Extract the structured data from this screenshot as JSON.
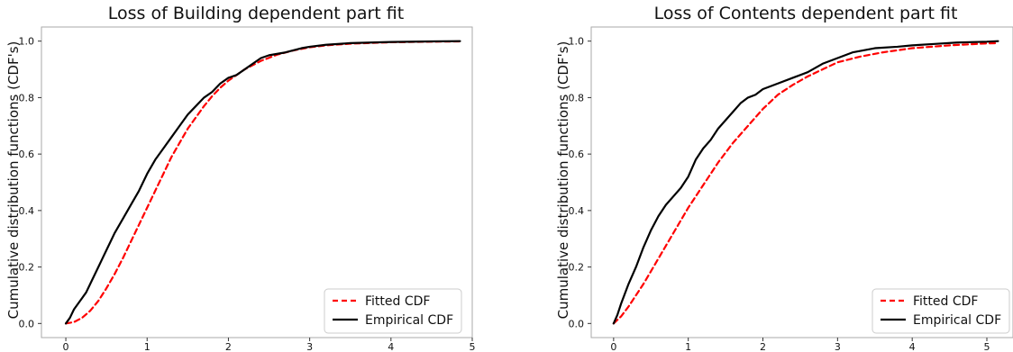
{
  "chart_data": [
    {
      "type": "line",
      "title": "Loss of Building dependent part fit",
      "xlabel": "",
      "ylabel": "Cumulative distribution functions (CDF's)",
      "xlim": [
        -0.3,
        5.0
      ],
      "ylim": [
        -0.05,
        1.05
      ],
      "xticks": [
        0,
        1,
        2,
        3,
        4,
        5
      ],
      "yticks": [
        0.0,
        0.2,
        0.4,
        0.6,
        0.8,
        1.0
      ],
      "ytick_labels": [
        "0.0",
        "0.2",
        "0.4",
        "0.6",
        "0.8",
        "1.0"
      ],
      "grid": false,
      "legend_position": "lower-right",
      "series": [
        {
          "name": "Fitted CDF",
          "color": "#ff0000",
          "style": "dashed",
          "x": [
            0,
            0.1,
            0.2,
            0.3,
            0.4,
            0.5,
            0.6,
            0.7,
            0.8,
            0.9,
            1.0,
            1.1,
            1.2,
            1.3,
            1.4,
            1.5,
            1.6,
            1.7,
            1.8,
            1.9,
            2.0,
            2.2,
            2.4,
            2.6,
            2.8,
            3.0,
            3.2,
            3.5,
            4.0,
            4.5,
            4.85
          ],
          "y": [
            0.0,
            0.005,
            0.02,
            0.045,
            0.08,
            0.125,
            0.175,
            0.23,
            0.29,
            0.35,
            0.41,
            0.47,
            0.53,
            0.59,
            0.64,
            0.69,
            0.73,
            0.77,
            0.805,
            0.835,
            0.86,
            0.9,
            0.93,
            0.952,
            0.967,
            0.978,
            0.985,
            0.991,
            0.996,
            0.998,
            0.999
          ]
        },
        {
          "name": "Empirical CDF",
          "color": "#000000",
          "style": "solid",
          "x": [
            0,
            0.05,
            0.1,
            0.15,
            0.2,
            0.25,
            0.3,
            0.35,
            0.4,
            0.45,
            0.5,
            0.55,
            0.6,
            0.7,
            0.8,
            0.9,
            1.0,
            1.1,
            1.2,
            1.3,
            1.4,
            1.5,
            1.6,
            1.7,
            1.8,
            1.9,
            2.0,
            2.1,
            2.2,
            2.3,
            2.4,
            2.5,
            2.7,
            2.9,
            3.0,
            3.2,
            3.5,
            4.0,
            4.5,
            4.85
          ],
          "y": [
            0.0,
            0.02,
            0.05,
            0.07,
            0.09,
            0.11,
            0.14,
            0.17,
            0.2,
            0.23,
            0.26,
            0.29,
            0.32,
            0.37,
            0.42,
            0.47,
            0.53,
            0.58,
            0.62,
            0.66,
            0.7,
            0.74,
            0.77,
            0.8,
            0.82,
            0.85,
            0.87,
            0.88,
            0.9,
            0.92,
            0.94,
            0.95,
            0.96,
            0.975,
            0.98,
            0.987,
            0.993,
            0.997,
            0.999,
            1.0
          ]
        }
      ]
    },
    {
      "type": "line",
      "title": "Loss of Contents dependent part fit",
      "xlabel": "",
      "ylabel": "Cumulative distribution functions (CDF's)",
      "xlim": [
        -0.3,
        5.35
      ],
      "ylim": [
        -0.05,
        1.05
      ],
      "xticks": [
        0,
        1,
        2,
        3,
        4,
        5
      ],
      "yticks": [
        0.0,
        0.2,
        0.4,
        0.6,
        0.8,
        1.0
      ],
      "ytick_labels": [
        "0.0",
        "0.2",
        "0.4",
        "0.6",
        "0.8",
        "1.0"
      ],
      "grid": false,
      "legend_position": "lower-right",
      "series": [
        {
          "name": "Fitted CDF",
          "color": "#ff0000",
          "style": "dashed",
          "x": [
            0,
            0.1,
            0.2,
            0.3,
            0.4,
            0.5,
            0.6,
            0.7,
            0.8,
            0.9,
            1.0,
            1.2,
            1.4,
            1.6,
            1.8,
            2.0,
            2.2,
            2.4,
            2.6,
            2.8,
            3.0,
            3.3,
            3.6,
            4.0,
            4.5,
            5.0,
            5.15
          ],
          "y": [
            0.0,
            0.025,
            0.06,
            0.1,
            0.14,
            0.185,
            0.23,
            0.275,
            0.32,
            0.365,
            0.41,
            0.49,
            0.57,
            0.64,
            0.7,
            0.76,
            0.81,
            0.845,
            0.875,
            0.9,
            0.925,
            0.945,
            0.96,
            0.975,
            0.985,
            0.992,
            0.993
          ]
        },
        {
          "name": "Empirical CDF",
          "color": "#000000",
          "style": "solid",
          "x": [
            0,
            0.05,
            0.1,
            0.2,
            0.3,
            0.4,
            0.5,
            0.6,
            0.7,
            0.8,
            0.9,
            1.0,
            1.1,
            1.2,
            1.3,
            1.4,
            1.5,
            1.6,
            1.7,
            1.8,
            1.9,
            2.0,
            2.2,
            2.4,
            2.6,
            2.8,
            3.0,
            3.2,
            3.5,
            3.8,
            4.0,
            4.3,
            4.6,
            5.0,
            5.15
          ],
          "y": [
            0.0,
            0.03,
            0.07,
            0.14,
            0.2,
            0.27,
            0.33,
            0.38,
            0.42,
            0.45,
            0.48,
            0.52,
            0.58,
            0.62,
            0.65,
            0.69,
            0.72,
            0.75,
            0.78,
            0.8,
            0.81,
            0.83,
            0.85,
            0.87,
            0.89,
            0.92,
            0.94,
            0.96,
            0.975,
            0.98,
            0.985,
            0.99,
            0.995,
            0.998,
            1.0
          ]
        }
      ]
    }
  ]
}
